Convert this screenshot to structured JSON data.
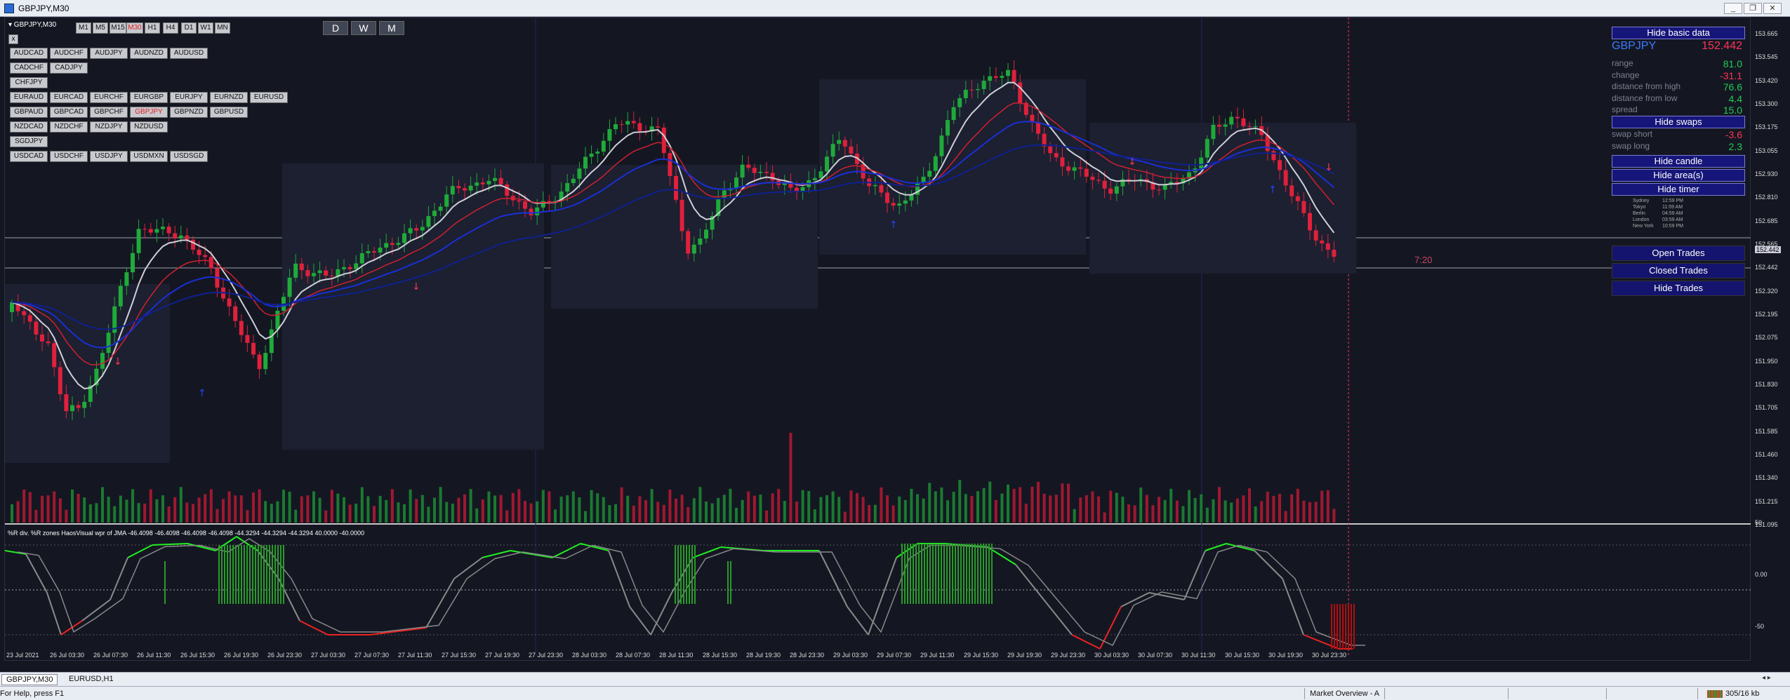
{
  "window": {
    "title": "GBPJPY,M30",
    "min": "_",
    "restore": "❐",
    "close": "✕"
  },
  "chart": {
    "symbol_label": "▾ GBPJPY,M30",
    "close_label": "x",
    "timeframes": [
      "M1",
      "M5",
      "M15",
      "M30",
      "H1",
      "H4",
      "D1",
      "W1",
      "MN"
    ],
    "active_timeframe": "M30",
    "periods": [
      "D",
      "W",
      "M"
    ],
    "pair_rows": [
      [
        "AUDCAD",
        "AUDCHF",
        "AUDJPY",
        "AUDNZD",
        "AUDUSD"
      ],
      [
        "CADCHF",
        "CADJPY"
      ],
      [
        "CHFJPY"
      ],
      [
        "EURAUD",
        "EURCAD",
        "EURCHF",
        "EURGBP",
        "EURJPY",
        "EURNZD",
        "EURUSD"
      ],
      [
        "GBPAUD",
        "GBPCAD",
        "GBPCHF",
        "GBPJPY",
        "GBPNZD",
        "GBPUSD"
      ],
      [
        "NZDCAD",
        "NZDCHF",
        "NZDJPY",
        "NZDUSD"
      ],
      [
        "SGDJPY"
      ],
      [
        "USDCAD",
        "USDCHF",
        "USDJPY",
        "USDMXN",
        "USDSGD"
      ]
    ],
    "active_pair": "GBPJPY",
    "countdown": "7:20",
    "current_price_label": "152.442",
    "indicator_label": "%R div. %R zones  HaosVisual wpr of JMA -46.4098 -46.4098 -46.4098 -46.4098 -44.3294 -44.3294 -44.3294 40.0000 -40.0000",
    "price_ticks": [
      "153.665",
      "153.545",
      "153.420",
      "153.300",
      "153.175",
      "153.055",
      "152.930",
      "152.810",
      "152.685",
      "152.565",
      "152.442",
      "152.320",
      "152.195",
      "152.075",
      "151.950",
      "151.830",
      "151.705",
      "151.585",
      "151.460",
      "151.340",
      "151.215",
      "151.095"
    ],
    "indicator_ticks": [
      "50",
      "0.00",
      "-50"
    ],
    "time_labels": [
      "23 Jul 2021",
      "26 Jul 03:30",
      "26 Jul 07:30",
      "26 Jul 11:30",
      "26 Jul 15:30",
      "26 Jul 19:30",
      "26 Jul 23:30",
      "27 Jul 03:30",
      "27 Jul 07:30",
      "27 Jul 11:30",
      "27 Jul 15:30",
      "27 Jul 19:30",
      "27 Jul 23:30",
      "28 Jul 03:30",
      "28 Jul 07:30",
      "28 Jul 11:30",
      "28 Jul 15:30",
      "28 Jul 19:30",
      "28 Jul 23:30",
      "29 Jul 03:30",
      "29 Jul 07:30",
      "29 Jul 11:30",
      "29 Jul 15:30",
      "29 Jul 19:30",
      "29 Jul 23:30",
      "30 Jul 03:30",
      "30 Jul 07:30",
      "30 Jul 11:30",
      "30 Jul 15:30",
      "30 Jul 19:30",
      "30 Jul 23:30"
    ]
  },
  "panel": {
    "hide_basic": "Hide basic data",
    "symbol": "GBPJPY",
    "price": "152.442",
    "rows": [
      {
        "k": "range",
        "v": "81.0",
        "color": "#22cc55"
      },
      {
        "k": "change",
        "v": "-31.1",
        "color": "#ff3355"
      },
      {
        "k": "distance from high",
        "v": "76.6",
        "color": "#22cc55"
      },
      {
        "k": "distance from low",
        "v": "4.4",
        "color": "#22cc55"
      },
      {
        "k": "spread",
        "v": "15.0",
        "color": "#22cc55"
      }
    ],
    "hide_swaps": "Hide swaps",
    "swaps": [
      {
        "k": "swap short",
        "v": "-3.6",
        "color": "#ff3355"
      },
      {
        "k": "swap long",
        "v": "2.3",
        "color": "#22cc55"
      }
    ],
    "hide_candle": "Hide candle",
    "hide_areas": "Hide area(s)",
    "hide_timer": "Hide timer",
    "timer": [
      {
        "city": "Sydney",
        "time": "12:59 PM"
      },
      {
        "city": "Tokyo",
        "time": "11:59 AM"
      },
      {
        "city": "Berlin",
        "time": "04:59 AM"
      },
      {
        "city": "London",
        "time": "03:59 AM"
      },
      {
        "city": "New York",
        "time": "10:59 PM"
      }
    ],
    "open_trades": "Open Trades",
    "closed_trades": "Closed Trades",
    "hide_trades": "Hide Trades"
  },
  "tabs": [
    "GBPJPY,M30",
    "EURUSD,H1"
  ],
  "active_tab": "GBPJPY,M30",
  "status": {
    "help": "For Help, press F1",
    "market": "Market Overview - A",
    "traffic": "305/16 kb"
  },
  "colors": {
    "bull": "#1faa3a",
    "bear": "#e0203c",
    "ema_fast": "#cfcfd8",
    "ema_mid": "#1a2fd6",
    "ema_slow": "#10208e",
    "panel_btn": "#16167a",
    "wpr_top": "#22ee22",
    "wpr_bottom": "#ee2222",
    "wpr_line": "#8a8a8a"
  }
}
